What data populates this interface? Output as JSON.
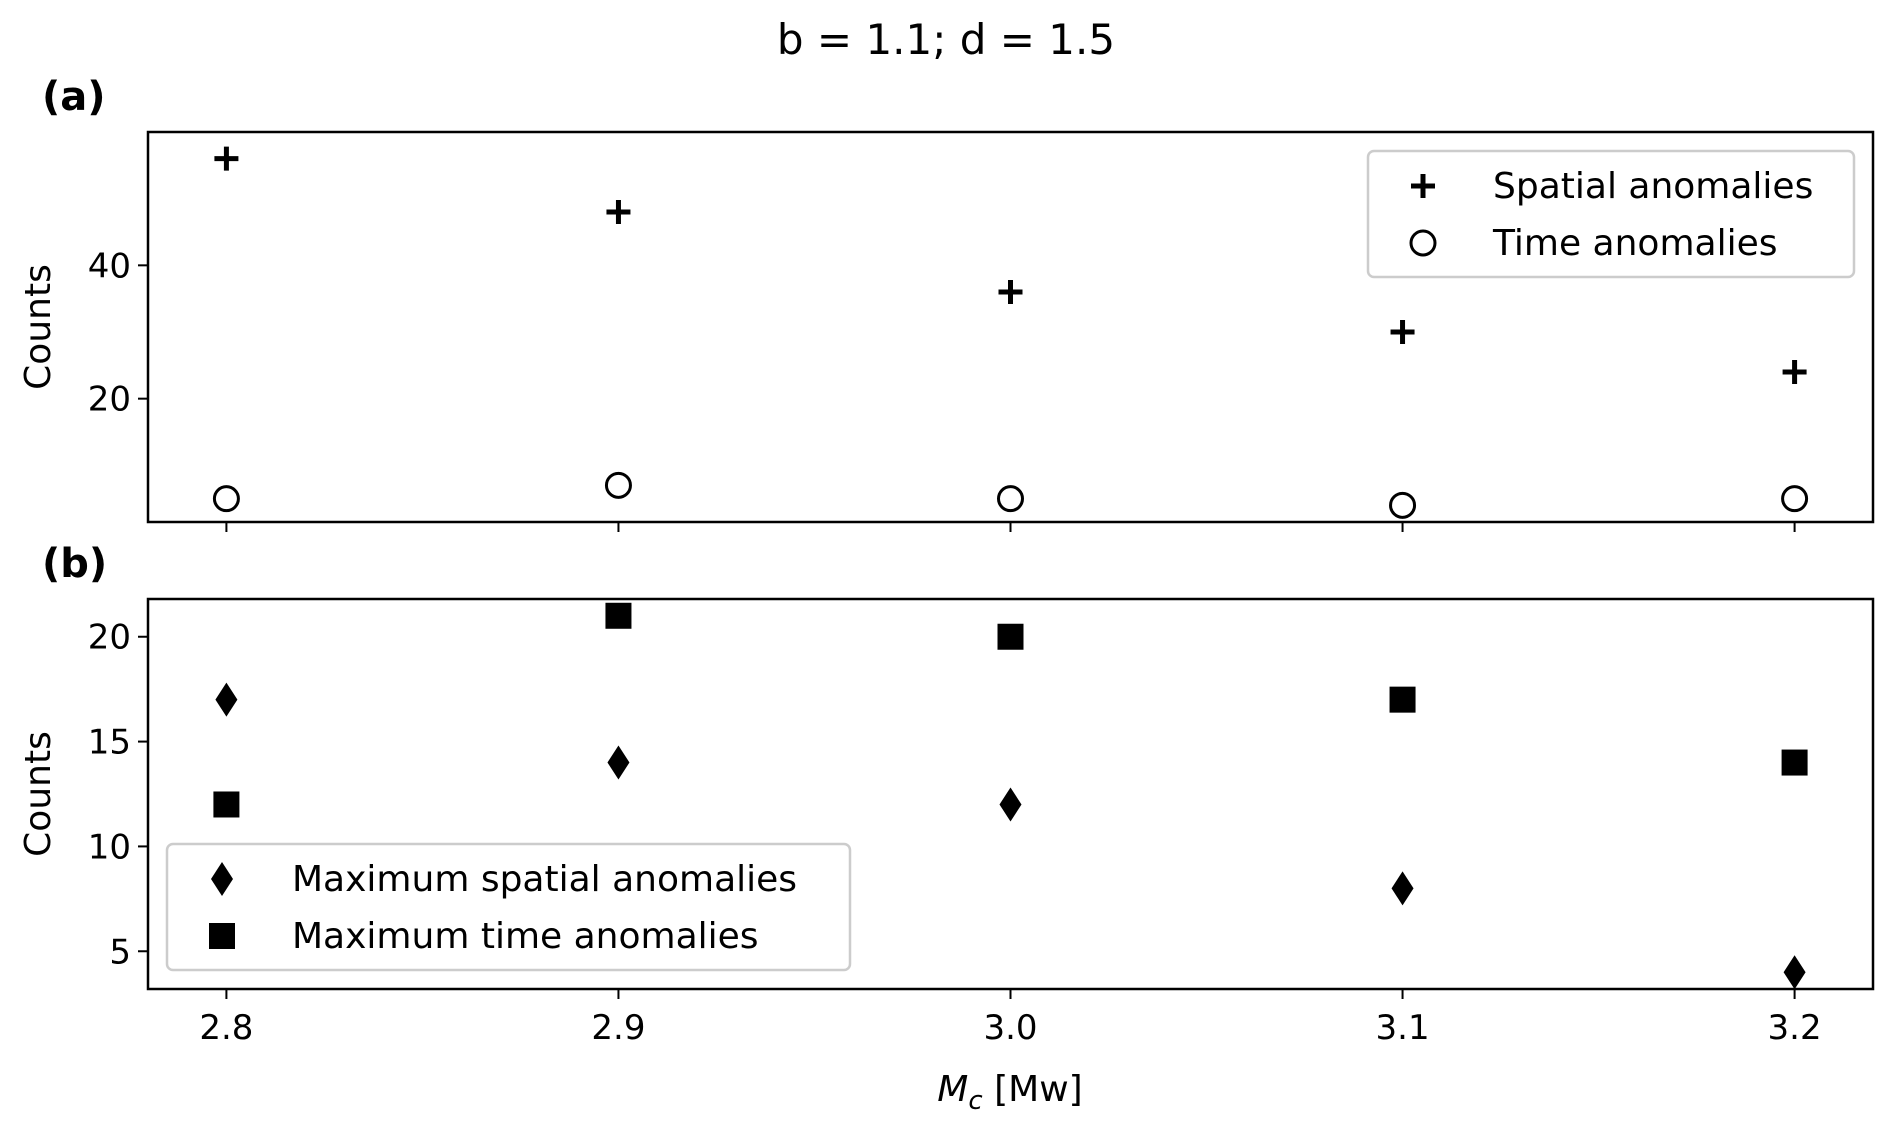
{
  "figure": {
    "suptitle": "b = 1.1; d = 1.5",
    "xlabel_main": "M",
    "xlabel_sub": "c",
    "xlabel_unit": " [Mw]"
  },
  "chart_data": [
    {
      "type": "scatter",
      "panel_label": "(a)",
      "title": "",
      "xlabel": "",
      "ylabel": "Counts",
      "x": [
        2.8,
        2.9,
        3.0,
        3.1,
        3.2
      ],
      "xlim": [
        2.78,
        3.22
      ],
      "ylim": [
        1.5,
        60
      ],
      "yticks": [
        20,
        40
      ],
      "xtick_labels_shown": false,
      "grid": false,
      "legend_position": "top-right",
      "series": [
        {
          "name": "Spatial anomalies",
          "marker": "plus",
          "values": [
            56,
            48,
            36,
            30,
            24
          ]
        },
        {
          "name": "Time anomalies",
          "marker": "circle-open",
          "values": [
            5,
            7,
            5,
            4,
            5
          ]
        }
      ]
    },
    {
      "type": "scatter",
      "panel_label": "(b)",
      "title": "",
      "xlabel": "M_c [Mw]",
      "ylabel": "Counts",
      "x": [
        2.8,
        2.9,
        3.0,
        3.1,
        3.2
      ],
      "xlim": [
        2.78,
        3.22
      ],
      "ylim": [
        3.2,
        21.8
      ],
      "yticks": [
        5,
        10,
        15,
        20
      ],
      "xticks": [
        2.8,
        2.9,
        3.0,
        3.1,
        3.2
      ],
      "xtick_labels": [
        "2.8",
        "2.9",
        "3.0",
        "3.1",
        "3.2"
      ],
      "xtick_labels_shown": true,
      "grid": false,
      "legend_position": "bottom-left",
      "series": [
        {
          "name": "Maximum spatial anomalies",
          "marker": "diamond",
          "values": [
            17,
            14,
            12,
            8,
            4
          ]
        },
        {
          "name": "Maximum time anomalies",
          "marker": "square",
          "values": [
            12,
            21,
            20,
            17,
            14
          ]
        }
      ]
    }
  ]
}
